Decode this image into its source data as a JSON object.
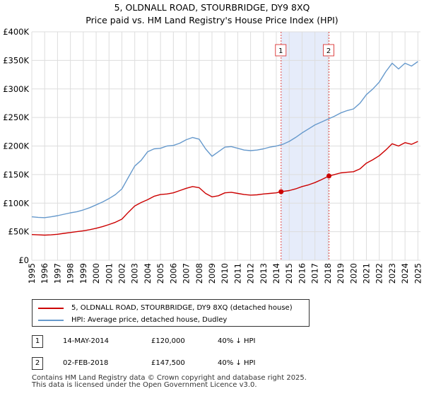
{
  "title_line1": "5, OLDNALL ROAD, STOURBRIDGE, DY9 8XQ",
  "title_line2": "Price paid vs. HM Land Registry's House Price Index (HPI)",
  "chart_data": {
    "type": "line",
    "title": "5, OLDNALL ROAD, STOURBRIDGE, DY9 8XQ — Price paid vs. HM Land Registry's House Price Index (HPI)",
    "xlim": [
      1995,
      2025.2
    ],
    "ylim": [
      0,
      400000
    ],
    "yticks": [
      0,
      50000,
      100000,
      150000,
      200000,
      250000,
      300000,
      350000,
      400000
    ],
    "ytick_labels": [
      "£0",
      "£50K",
      "£100K",
      "£150K",
      "£200K",
      "£250K",
      "£300K",
      "£350K",
      "£400K"
    ],
    "xticks": [
      1995,
      1996,
      1997,
      1998,
      1999,
      2000,
      2001,
      2002,
      2003,
      2004,
      2005,
      2006,
      2007,
      2008,
      2009,
      2010,
      2011,
      2012,
      2013,
      2014,
      2015,
      2016,
      2017,
      2018,
      2019,
      2020,
      2021,
      2022,
      2023,
      2024,
      2025
    ],
    "grid": true,
    "shaded_period": [
      2014.37,
      2018.09
    ],
    "series": [
      {
        "name": "5, OLDNALL ROAD, STOURBRIDGE, DY9 8XQ (detached house)",
        "color": "#cc0000",
        "x": [
          1995,
          1995.5,
          1996,
          1996.5,
          1997,
          1997.5,
          1998,
          1998.5,
          1999,
          1999.5,
          2000,
          2000.5,
          2001,
          2001.5,
          2002,
          2002.5,
          2003,
          2003.5,
          2004,
          2004.5,
          2005,
          2005.5,
          2006,
          2006.5,
          2007,
          2007.5,
          2008,
          2008.5,
          2009,
          2009.5,
          2010,
          2010.5,
          2011,
          2011.5,
          2012,
          2012.5,
          2013,
          2013.5,
          2014,
          2014.37,
          2015,
          2015.5,
          2016,
          2016.5,
          2017,
          2017.5,
          2018.09,
          2018.5,
          2019,
          2019.5,
          2020,
          2020.5,
          2021,
          2021.5,
          2022,
          2022.5,
          2023,
          2023.5,
          2024,
          2024.5,
          2025
        ],
        "values": [
          45000,
          44500,
          44000,
          44500,
          45500,
          47000,
          48500,
          50000,
          51500,
          53500,
          56000,
          59000,
          62500,
          66500,
          72000,
          84000,
          95000,
          101000,
          106000,
          112000,
          115000,
          116000,
          118000,
          122000,
          126000,
          129000,
          127000,
          117000,
          111000,
          113000,
          118000,
          119000,
          117000,
          115000,
          114000,
          114500,
          116000,
          117000,
          118000,
          120000,
          122000,
          125000,
          129000,
          132000,
          136000,
          141000,
          147500,
          150000,
          153000,
          154000,
          155000,
          160000,
          170000,
          176000,
          183000,
          193000,
          204000,
          200000,
          206000,
          203000,
          208000
        ]
      },
      {
        "name": "HPI: Average price, detached house, Dudley",
        "color": "#6699cc",
        "x": [
          1995,
          1995.5,
          1996,
          1996.5,
          1997,
          1997.5,
          1998,
          1998.5,
          1999,
          1999.5,
          2000,
          2000.5,
          2001,
          2001.5,
          2002,
          2002.5,
          2003,
          2003.5,
          2004,
          2004.5,
          2005,
          2005.5,
          2006,
          2006.5,
          2007,
          2007.5,
          2008,
          2008.5,
          2009,
          2009.5,
          2010,
          2010.5,
          2011,
          2011.5,
          2012,
          2012.5,
          2013,
          2013.5,
          2014,
          2014.5,
          2015,
          2015.5,
          2016,
          2016.5,
          2017,
          2017.5,
          2018,
          2018.5,
          2019,
          2019.5,
          2020,
          2020.5,
          2021,
          2021.5,
          2022,
          2022.5,
          2023,
          2023.5,
          2024,
          2024.5,
          2025
        ],
        "values": [
          76000,
          75000,
          74500,
          76000,
          78000,
          80500,
          83000,
          85000,
          88000,
          92000,
          97000,
          102000,
          108000,
          115000,
          125000,
          145000,
          165000,
          175000,
          190000,
          195000,
          196000,
          200000,
          201000,
          205000,
          211000,
          215000,
          212000,
          195000,
          182000,
          190000,
          198000,
          199000,
          196000,
          193000,
          192000,
          193000,
          195000,
          198000,
          200000,
          203000,
          208000,
          215000,
          223000,
          230000,
          237000,
          242000,
          247000,
          252000,
          258000,
          262000,
          265000,
          275000,
          290000,
          300000,
          312000,
          330000,
          345000,
          335000,
          345000,
          340000,
          348000
        ]
      }
    ],
    "transactions": [
      {
        "label": "1",
        "x": 2014.37,
        "value": 120000,
        "date": "14-MAY-2014",
        "price": "£120,000",
        "hpi": "40% ↓ HPI"
      },
      {
        "label": "2",
        "x": 2018.09,
        "value": 147500,
        "date": "02-FEB-2018",
        "price": "£147,500",
        "hpi": "40% ↓ HPI"
      }
    ]
  },
  "legend": {
    "property_label": "5, OLDNALL ROAD, STOURBRIDGE, DY9 8XQ (detached house)",
    "hpi_label": "HPI: Average price, detached house, Dudley"
  },
  "footer": {
    "line1": "Contains HM Land Registry data © Crown copyright and database right 2025.",
    "line2": "This data is licensed under the Open Government Licence v3.0."
  }
}
